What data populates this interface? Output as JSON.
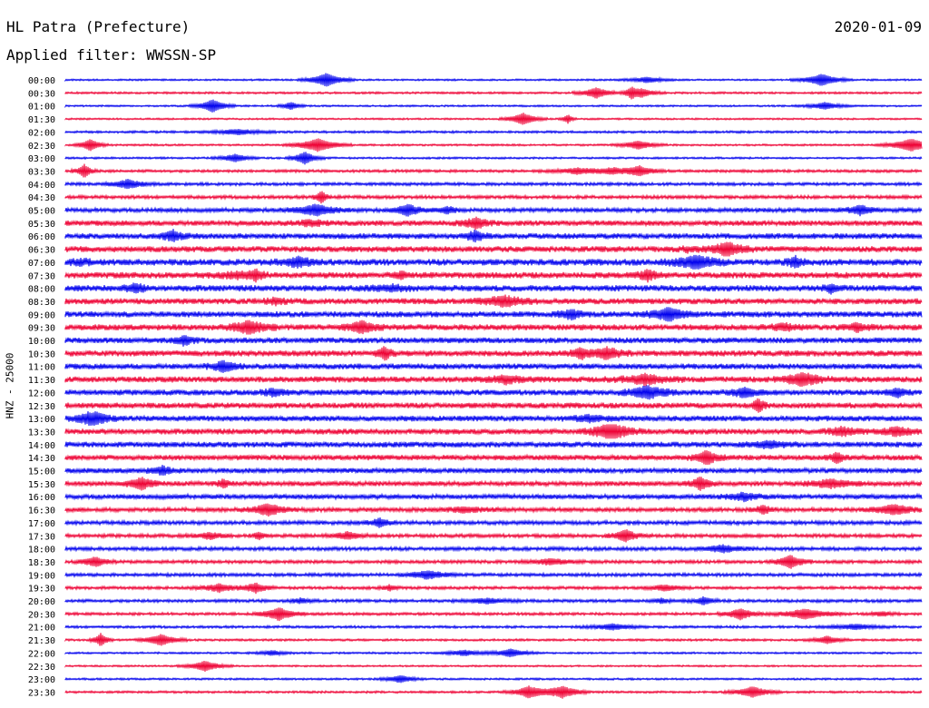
{
  "header": {
    "station": "HL Patra (Prefecture)",
    "date": "2020-01-09",
    "filter": "Applied filter: WWSSN-SP"
  },
  "chart_data": {
    "type": "line",
    "title": "HL Patra (Prefecture)",
    "date": "2020-01-09",
    "ylabel": "HNZ - 25000",
    "series_colors": [
      "#0000ee",
      "#ee0033"
    ],
    "rows": [
      {
        "time": "00:00",
        "intensity": 0.12
      },
      {
        "time": "00:30",
        "intensity": 0.18
      },
      {
        "time": "01:00",
        "intensity": 0.12
      },
      {
        "time": "01:30",
        "intensity": 0.12
      },
      {
        "time": "02:00",
        "intensity": 0.22
      },
      {
        "time": "02:30",
        "intensity": 0.15
      },
      {
        "time": "03:00",
        "intensity": 0.15
      },
      {
        "time": "03:30",
        "intensity": 0.3
      },
      {
        "time": "04:00",
        "intensity": 0.35
      },
      {
        "time": "04:30",
        "intensity": 0.4
      },
      {
        "time": "05:00",
        "intensity": 0.55
      },
      {
        "time": "05:30",
        "intensity": 0.75
      },
      {
        "time": "06:00",
        "intensity": 0.8
      },
      {
        "time": "06:30",
        "intensity": 0.85
      },
      {
        "time": "07:00",
        "intensity": 0.95
      },
      {
        "time": "07:30",
        "intensity": 0.9
      },
      {
        "time": "08:00",
        "intensity": 0.9
      },
      {
        "time": "08:30",
        "intensity": 0.85
      },
      {
        "time": "09:00",
        "intensity": 0.85
      },
      {
        "time": "09:30",
        "intensity": 0.85
      },
      {
        "time": "10:00",
        "intensity": 0.8
      },
      {
        "time": "10:30",
        "intensity": 0.85
      },
      {
        "time": "11:00",
        "intensity": 0.8
      },
      {
        "time": "11:30",
        "intensity": 0.85
      },
      {
        "time": "12:00",
        "intensity": 0.8
      },
      {
        "time": "12:30",
        "intensity": 0.8
      },
      {
        "time": "13:00",
        "intensity": 0.8
      },
      {
        "time": "13:30",
        "intensity": 0.8
      },
      {
        "time": "14:00",
        "intensity": 0.8
      },
      {
        "time": "14:30",
        "intensity": 0.75
      },
      {
        "time": "15:00",
        "intensity": 0.7
      },
      {
        "time": "15:30",
        "intensity": 0.65
      },
      {
        "time": "16:00",
        "intensity": 0.65
      },
      {
        "time": "16:30",
        "intensity": 0.55
      },
      {
        "time": "17:00",
        "intensity": 0.5
      },
      {
        "time": "17:30",
        "intensity": 0.45
      },
      {
        "time": "18:00",
        "intensity": 0.45
      },
      {
        "time": "18:30",
        "intensity": 0.4
      },
      {
        "time": "19:00",
        "intensity": 0.4
      },
      {
        "time": "19:30",
        "intensity": 0.35
      },
      {
        "time": "20:00",
        "intensity": 0.35
      },
      {
        "time": "20:30",
        "intensity": 0.3
      },
      {
        "time": "21:00",
        "intensity": 0.25
      },
      {
        "time": "21:30",
        "intensity": 0.2
      },
      {
        "time": "22:00",
        "intensity": 0.15
      },
      {
        "time": "22:30",
        "intensity": 0.12
      },
      {
        "time": "23:00",
        "intensity": 0.15
      },
      {
        "time": "23:30",
        "intensity": 0.2
      }
    ]
  }
}
